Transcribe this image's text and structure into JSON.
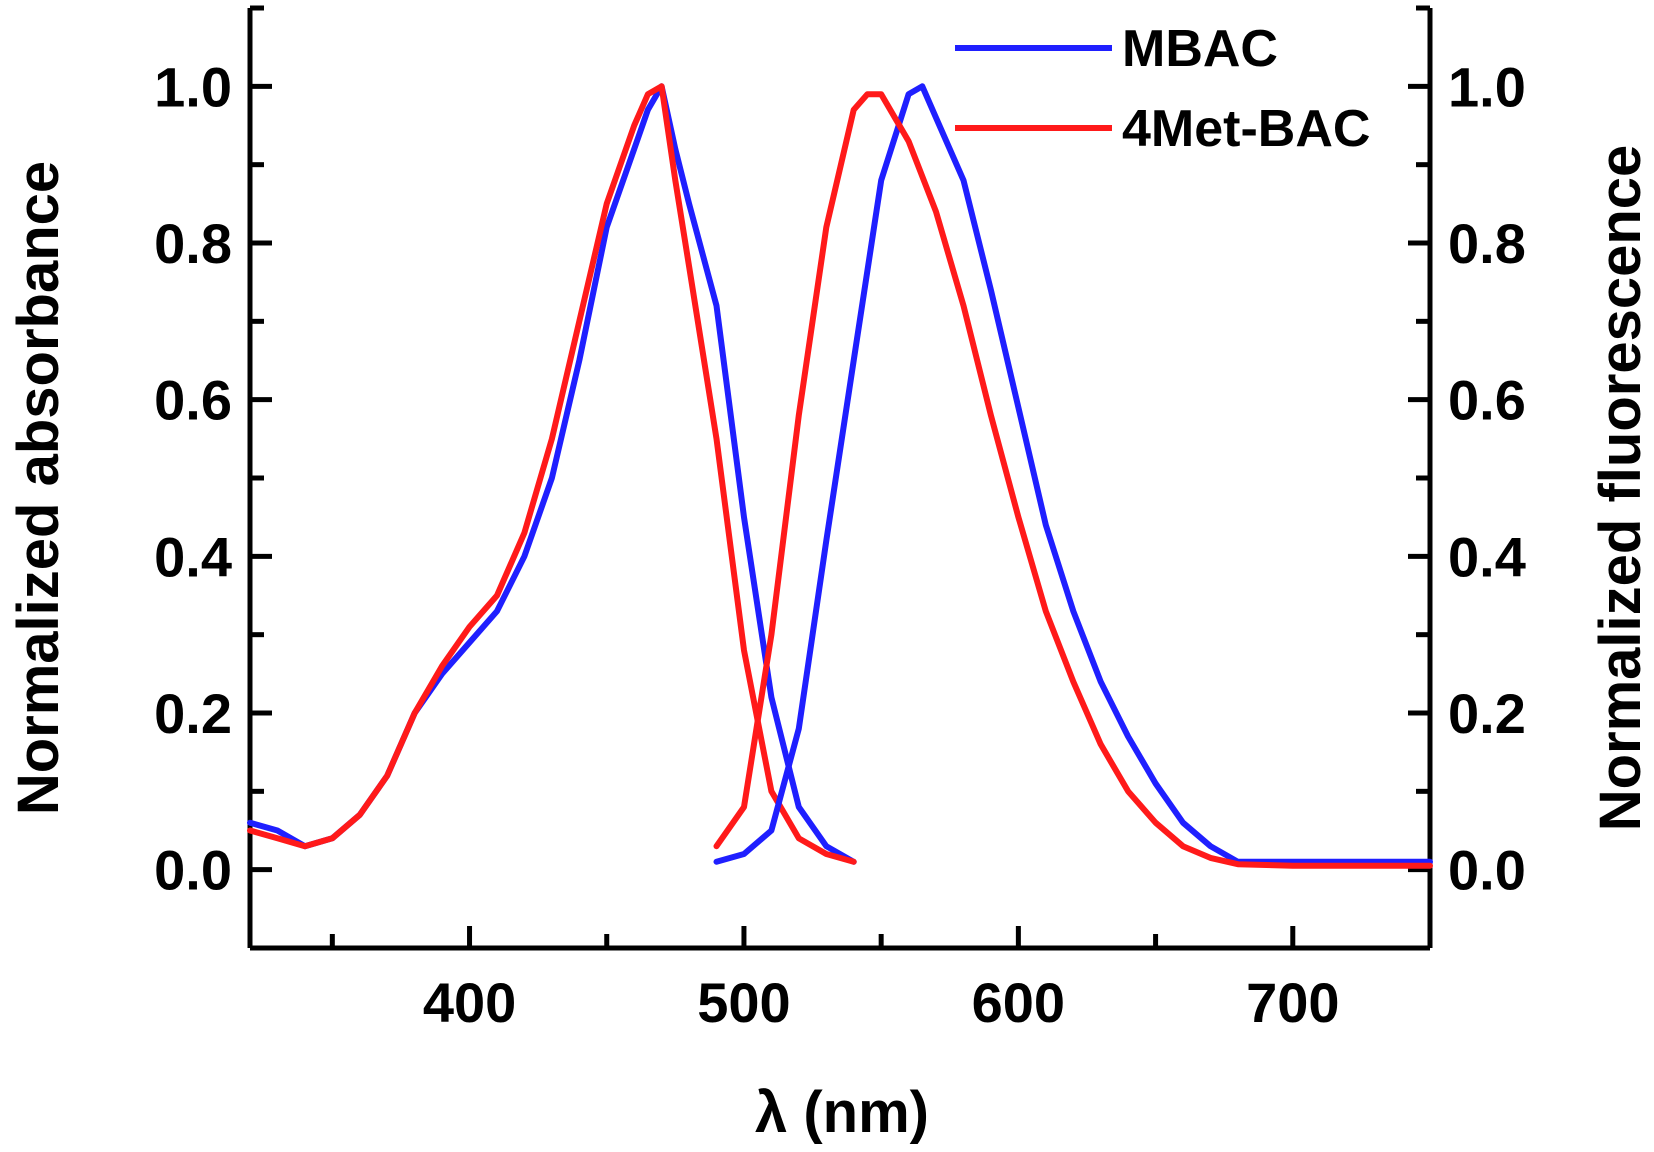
{
  "chart_data": {
    "type": "line",
    "xlabel": "λ (nm)",
    "ylabel_left": "Normalized absorbance",
    "ylabel_right": "Normalized fluorescence",
    "xlim": [
      320,
      750
    ],
    "ylim": [
      -0.1,
      1.1
    ],
    "x_ticks": [
      400,
      500,
      600,
      700
    ],
    "x_tick_labels": [
      "400",
      "500",
      "600",
      "700"
    ],
    "y_ticks": [
      0.0,
      0.2,
      0.4,
      0.6,
      0.8,
      1.0
    ],
    "y_tick_labels": [
      "0.0",
      "0.2",
      "0.4",
      "0.6",
      "0.8",
      "1.0"
    ],
    "grid": false,
    "legend_position": "top-right",
    "legend": [
      {
        "name": "MBAC",
        "color": "#1f1fff"
      },
      {
        "name": "4Met-BAC",
        "color": "#ff1a1a"
      }
    ],
    "series": [
      {
        "name": "MBAC",
        "kind": "absorbance",
        "color": "#1f1fff",
        "x": [
          320,
          330,
          340,
          350,
          360,
          370,
          380,
          390,
          400,
          410,
          420,
          430,
          440,
          450,
          460,
          465,
          470,
          475,
          480,
          490,
          500,
          510,
          520,
          530,
          540
        ],
        "y": [
          0.06,
          0.05,
          0.03,
          0.04,
          0.07,
          0.12,
          0.2,
          0.25,
          0.29,
          0.33,
          0.4,
          0.5,
          0.65,
          0.82,
          0.92,
          0.97,
          1.0,
          0.92,
          0.85,
          0.72,
          0.45,
          0.22,
          0.08,
          0.03,
          0.01
        ]
      },
      {
        "name": "4Met-BAC",
        "kind": "absorbance",
        "color": "#ff1a1a",
        "x": [
          320,
          330,
          340,
          350,
          360,
          370,
          380,
          390,
          400,
          410,
          420,
          430,
          440,
          450,
          460,
          465,
          470,
          475,
          480,
          490,
          500,
          510,
          520,
          530,
          540
        ],
        "y": [
          0.05,
          0.04,
          0.03,
          0.04,
          0.07,
          0.12,
          0.2,
          0.26,
          0.31,
          0.35,
          0.43,
          0.55,
          0.7,
          0.85,
          0.95,
          0.99,
          1.0,
          0.88,
          0.77,
          0.55,
          0.28,
          0.1,
          0.04,
          0.02,
          0.01
        ]
      },
      {
        "name": "MBAC",
        "kind": "fluorescence",
        "color": "#1f1fff",
        "x": [
          490,
          500,
          510,
          520,
          530,
          540,
          550,
          560,
          565,
          570,
          580,
          590,
          600,
          610,
          620,
          630,
          640,
          650,
          660,
          670,
          680,
          690,
          700,
          720,
          750
        ],
        "y": [
          0.01,
          0.02,
          0.05,
          0.18,
          0.42,
          0.65,
          0.88,
          0.99,
          1.0,
          0.96,
          0.88,
          0.74,
          0.59,
          0.44,
          0.33,
          0.24,
          0.17,
          0.11,
          0.06,
          0.03,
          0.01,
          0.01,
          0.01,
          0.01,
          0.01
        ]
      },
      {
        "name": "4Met-BAC",
        "kind": "fluorescence",
        "color": "#ff1a1a",
        "x": [
          490,
          500,
          510,
          520,
          530,
          540,
          545,
          550,
          555,
          560,
          570,
          580,
          590,
          600,
          610,
          620,
          630,
          640,
          650,
          660,
          670,
          680,
          700,
          720,
          750
        ],
        "y": [
          0.03,
          0.08,
          0.3,
          0.58,
          0.82,
          0.97,
          0.99,
          0.99,
          0.96,
          0.93,
          0.84,
          0.72,
          0.58,
          0.45,
          0.33,
          0.24,
          0.16,
          0.1,
          0.06,
          0.03,
          0.015,
          0.007,
          0.005,
          0.005,
          0.005
        ]
      }
    ]
  }
}
